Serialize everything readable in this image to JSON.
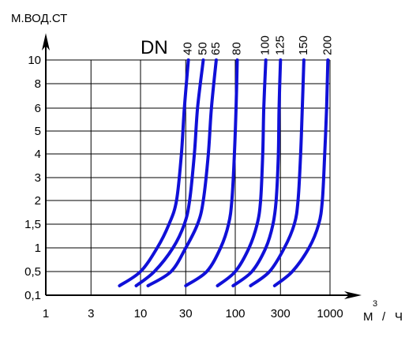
{
  "chart_data": {
    "type": "line",
    "ylabel": "М.ВОД.СТ",
    "xlabel_base": "М",
    "xlabel_sup": "3",
    "xlabel_sep": "/",
    "xlabel_tail": "Ч",
    "legend_title": "DN",
    "x_scale": "log",
    "y_scale": "nonlinear",
    "grid": true,
    "xlim": [
      1,
      1000
    ],
    "ylim": [
      0.1,
      10
    ],
    "x_ticks": [
      "1",
      "3",
      "10",
      "30",
      "100",
      "300",
      "1000"
    ],
    "y_ticks": [
      "0,1",
      "0,5",
      "1",
      "1,5",
      "2",
      "3",
      "4",
      "5",
      "6",
      "8",
      "10"
    ],
    "series": [
      {
        "name": "40",
        "x": [
          6,
          10,
          15,
          20,
          24,
          27,
          29,
          32
        ],
        "y": [
          0.1,
          0.5,
          1,
          1.5,
          2,
          4,
          6,
          10
        ]
      },
      {
        "name": "50",
        "x": [
          9,
          14,
          22,
          29,
          33,
          37,
          40,
          46
        ],
        "y": [
          0.1,
          0.5,
          1,
          1.5,
          2,
          4,
          6,
          10
        ]
      },
      {
        "name": "65",
        "x": [
          12,
          21,
          30,
          40,
          46,
          52,
          56,
          63
        ],
        "y": [
          0.1,
          0.5,
          1,
          1.5,
          2,
          4,
          6,
          10
        ]
      },
      {
        "name": "80",
        "x": [
          30,
          50,
          70,
          85,
          92,
          98,
          102,
          105
        ],
        "y": [
          0.1,
          0.5,
          1,
          1.5,
          2,
          4,
          6,
          10
        ]
      },
      {
        "name": "100",
        "x": [
          65,
          100,
          140,
          170,
          185,
          195,
          200,
          210
        ],
        "y": [
          0.1,
          0.5,
          1,
          1.5,
          2,
          4,
          6,
          10
        ]
      },
      {
        "name": "125",
        "x": [
          95,
          150,
          210,
          250,
          270,
          285,
          290,
          300
        ],
        "y": [
          0.1,
          0.5,
          1,
          1.5,
          2,
          4,
          6,
          10
        ]
      },
      {
        "name": "150",
        "x": [
          145,
          230,
          330,
          420,
          460,
          490,
          510,
          530
        ],
        "y": [
          0.1,
          0.5,
          1,
          1.5,
          2,
          4,
          6,
          10
        ]
      },
      {
        "name": "200",
        "x": [
          260,
          400,
          600,
          760,
          830,
          880,
          920,
          950
        ],
        "y": [
          0.1,
          0.5,
          1,
          1.5,
          2,
          4,
          6,
          10
        ]
      }
    ],
    "colors": {
      "curve": "#1010d8",
      "axis": "#000000",
      "grid": "#000000"
    }
  }
}
